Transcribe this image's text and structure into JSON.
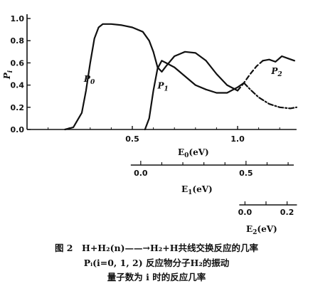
{
  "chart_data": {
    "type": "line",
    "ylabel": "P",
    "ylabel_sub": "i",
    "ylim": [
      0,
      1.0
    ],
    "y_ticks": [
      "0.0",
      "0.2",
      "0.4",
      "0.6",
      "0.8",
      "1.0"
    ],
    "axes": [
      {
        "label": "E",
        "sub": "0",
        "unit": "(eV)",
        "range": [
          0.0,
          1.28
        ],
        "ticks": [
          "0.5",
          "1.0"
        ]
      },
      {
        "label": "E",
        "sub": "1",
        "unit": "(eV)",
        "range": [
          0.0,
          0.72
        ],
        "ticks": [
          "0.0",
          "0.5"
        ]
      },
      {
        "label": "E",
        "sub": "2",
        "unit": "(eV)",
        "range": [
          0.0,
          0.24
        ],
        "ticks": [
          "0.0",
          "0.2"
        ]
      }
    ],
    "series": [
      {
        "name": "P",
        "sub": "0",
        "style": "solid",
        "x": [
          0.18,
          0.22,
          0.26,
          0.28,
          0.3,
          0.32,
          0.34,
          0.36,
          0.4,
          0.45,
          0.5,
          0.55,
          0.58,
          0.6,
          0.62,
          0.64,
          0.66,
          0.7,
          0.75,
          0.8,
          0.85,
          0.9,
          0.95,
          1.0
        ],
        "y": [
          0.0,
          0.02,
          0.15,
          0.35,
          0.6,
          0.82,
          0.92,
          0.95,
          0.95,
          0.94,
          0.92,
          0.88,
          0.8,
          0.7,
          0.56,
          0.52,
          0.57,
          0.66,
          0.7,
          0.69,
          0.62,
          0.5,
          0.4,
          0.35
        ]
      },
      {
        "name": "P",
        "sub": "1",
        "style": "solid",
        "x": [
          0.56,
          0.58,
          0.6,
          0.62,
          0.64,
          0.66,
          0.7,
          0.75,
          0.8,
          0.85,
          0.9,
          0.95,
          1.0,
          1.03
        ],
        "y": [
          0.0,
          0.1,
          0.35,
          0.55,
          0.62,
          0.6,
          0.56,
          0.48,
          0.4,
          0.36,
          0.33,
          0.33,
          0.38,
          0.42
        ]
      },
      {
        "name": "P",
        "sub": "1",
        "style": "dash-dot",
        "x": [
          1.03,
          1.06,
          1.1,
          1.15,
          1.2,
          1.25,
          1.28
        ],
        "y": [
          0.42,
          0.36,
          0.29,
          0.23,
          0.2,
          0.19,
          0.2
        ]
      },
      {
        "name": "P",
        "sub": "2",
        "style": "dashed",
        "x": [
          1.0,
          1.03,
          1.06,
          1.09,
          1.12
        ],
        "y": [
          0.35,
          0.42,
          0.5,
          0.57,
          0.62
        ]
      },
      {
        "name": "P",
        "sub": "2",
        "style": "solid",
        "x": [
          1.12,
          1.15,
          1.18,
          1.21,
          1.24,
          1.27
        ],
        "y": [
          0.62,
          0.63,
          0.61,
          0.66,
          0.64,
          0.62
        ]
      }
    ],
    "series_labels": [
      {
        "text": "P",
        "sub": "0",
        "x": 0.27,
        "y": 0.43
      },
      {
        "text": "P",
        "sub": "1",
        "x": 0.62,
        "y": 0.37
      },
      {
        "text": "P",
        "sub": "2",
        "x": 1.16,
        "y": 0.5
      }
    ]
  },
  "caption": {
    "line1": "图 2　H+H₂(n)——→H₂+H共线交换反应的几率",
    "line2": "Pᵢ(i=0, 1, 2) 反应物分子H₂的振动",
    "line3": "量子数为 i 时的反应几率"
  }
}
